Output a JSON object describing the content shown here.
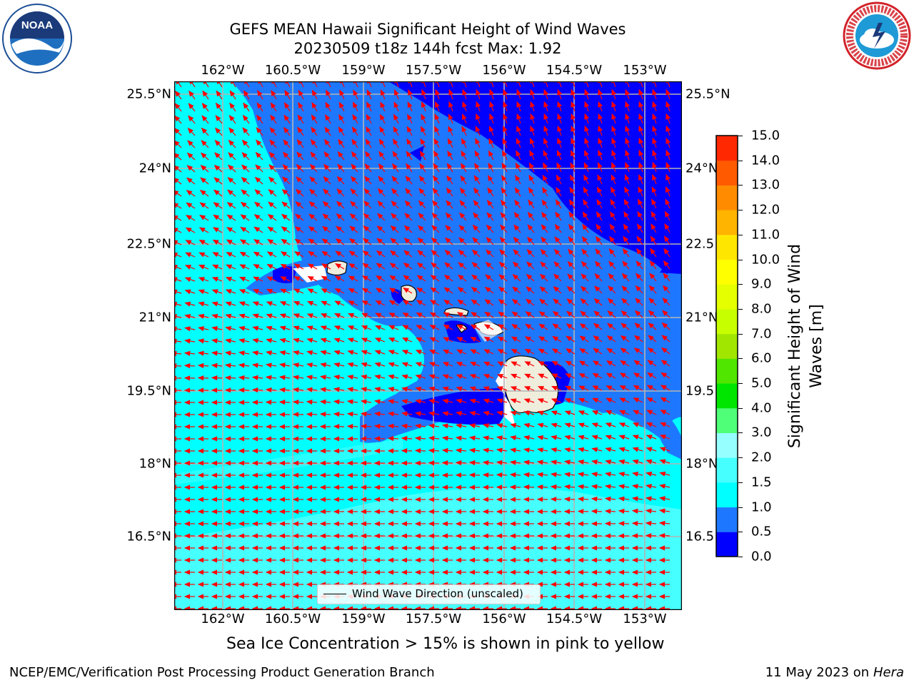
{
  "title": {
    "line1": "GEFS MEAN Hawaii Significant Height of Wind Waves",
    "line2": "20230509 t18z 144h fcst   Max: 1.92"
  },
  "axes": {
    "lon_ticks": [
      "162°W",
      "160.5°W",
      "159°W",
      "157.5°W",
      "156°W",
      "154.5°W",
      "153°W"
    ],
    "lat_ticks": [
      "25.5°N",
      "24°N",
      "22.5°N",
      "21°N",
      "19.5°N",
      "18°N",
      "16.5°N"
    ],
    "lat_ticks_right": [
      "25.5°N",
      "24°N",
      "22.5",
      "21°N",
      "19.5",
      "18°N",
      "16.5"
    ]
  },
  "legend": {
    "line_label": "Wind Wave Direction (unscaled)"
  },
  "colorbar": {
    "label": "Significant Height of Wind Waves [m]",
    "label_line1": "Significant Height of Wind",
    "label_line2": "Waves [m]",
    "ticks": [
      "0.0",
      "0.5",
      "1.0",
      "1.5",
      "2.0",
      "3.0",
      "4.0",
      "5.0",
      "6.0",
      "7.0",
      "8.0",
      "9.0",
      "10.0",
      "11.0",
      "12.0",
      "13.0",
      "14.0",
      "15.0"
    ],
    "colors": [
      "#0000ff",
      "#1e78ff",
      "#00ffff",
      "#46ffff",
      "#96ffff",
      "#50ff78",
      "#00e600",
      "#50e600",
      "#a0e600",
      "#c8ff00",
      "#e6ff00",
      "#ffff00",
      "#ffe600",
      "#ffb400",
      "#ff8c00",
      "#ff5a00",
      "#ff2800",
      "#ff0000"
    ]
  },
  "subtitle": "Sea Ice Concentration > 15% is shown in pink to yellow",
  "footer": {
    "left": "NCEP/EMC/Verification Post Processing Product Generation Branch",
    "date": "11 May 2023 on",
    "machine": "Hera"
  },
  "logos": {
    "left": "NOAA",
    "right": "NATIONAL WEATHER SERVICE"
  },
  "colors": {
    "arrows": "#ff0000",
    "land": "#efeddc",
    "grid": "#b4b4b4"
  }
}
